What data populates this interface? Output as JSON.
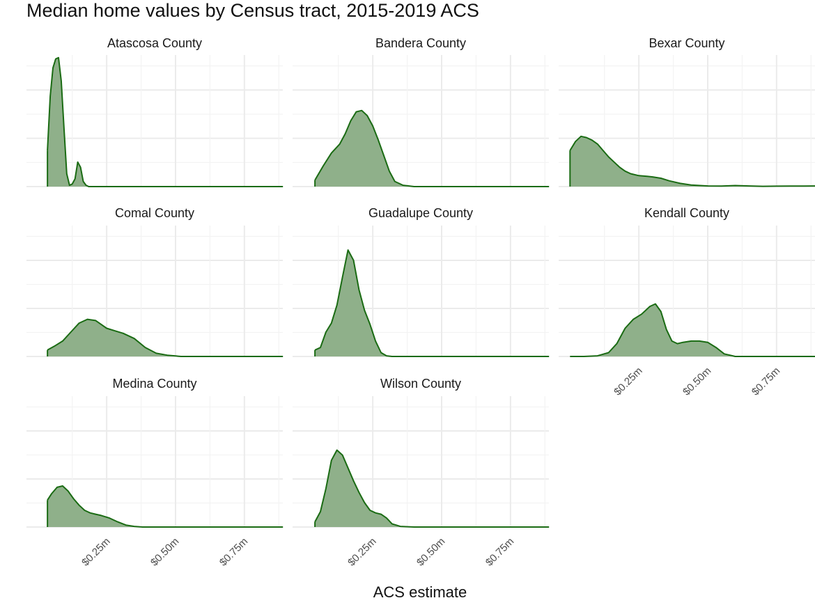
{
  "chart_data": {
    "type": "area",
    "title": "Median home values by Census tract, 2015-2019 ACS",
    "xlabel": "ACS estimate",
    "ylabel": "",
    "xlim": [
      0,
      0.9
    ],
    "x_ticks": [
      0.25,
      0.5,
      0.75
    ],
    "x_tick_labels": [
      "$0.25m",
      "$0.50m",
      "$0.75m"
    ],
    "grid": true,
    "colors": {
      "fill": "#8fb08a",
      "line": "#1a6b13",
      "grid": "#ebebeb"
    },
    "facets": [
      {
        "name": "Atascosa County",
        "x": [
          0.035,
          0.045,
          0.055,
          0.065,
          0.075,
          0.085,
          0.095,
          0.105,
          0.115,
          0.125,
          0.135,
          0.145,
          0.155,
          0.165,
          0.175,
          0.185,
          0.2,
          0.25,
          0.4,
          0.6,
          0.89
        ],
        "y": [
          0.28,
          0.7,
          0.92,
          0.99,
          1.0,
          0.82,
          0.45,
          0.1,
          0.01,
          0.02,
          0.06,
          0.19,
          0.15,
          0.04,
          0.01,
          0.0,
          0.0,
          0.0,
          0.0,
          0.0,
          0.0
        ]
      },
      {
        "name": "Bandera County",
        "x": [
          0.04,
          0.07,
          0.1,
          0.13,
          0.15,
          0.17,
          0.19,
          0.21,
          0.23,
          0.25,
          0.27,
          0.29,
          0.31,
          0.33,
          0.36,
          0.4,
          0.5,
          0.7,
          0.89
        ],
        "y": [
          0.05,
          0.16,
          0.26,
          0.33,
          0.41,
          0.51,
          0.58,
          0.59,
          0.55,
          0.47,
          0.36,
          0.24,
          0.12,
          0.04,
          0.01,
          0.0,
          0.0,
          0.0,
          0.0
        ]
      },
      {
        "name": "Bexar County",
        "x": [
          0.0,
          0.02,
          0.04,
          0.06,
          0.08,
          0.1,
          0.12,
          0.14,
          0.16,
          0.18,
          0.2,
          0.22,
          0.25,
          0.28,
          0.3,
          0.33,
          0.36,
          0.4,
          0.44,
          0.5,
          0.55,
          0.6,
          0.65,
          0.7,
          0.75,
          0.8,
          0.85,
          0.89
        ],
        "y": [
          0.28,
          0.35,
          0.39,
          0.38,
          0.36,
          0.33,
          0.28,
          0.23,
          0.19,
          0.15,
          0.12,
          0.1,
          0.085,
          0.08,
          0.075,
          0.065,
          0.045,
          0.025,
          0.012,
          0.005,
          0.004,
          0.008,
          0.005,
          0.002,
          0.003,
          0.004,
          0.004,
          0.005
        ]
      },
      {
        "name": "Comal County",
        "x": [
          0.035,
          0.06,
          0.09,
          0.12,
          0.15,
          0.18,
          0.21,
          0.23,
          0.25,
          0.28,
          0.31,
          0.35,
          0.39,
          0.43,
          0.47,
          0.52,
          0.6,
          0.75,
          0.89
        ],
        "y": [
          0.05,
          0.08,
          0.12,
          0.19,
          0.26,
          0.29,
          0.28,
          0.25,
          0.22,
          0.2,
          0.18,
          0.14,
          0.07,
          0.025,
          0.01,
          0.0,
          0.0,
          0.0,
          0.0
        ]
      },
      {
        "name": "Guadalupe County",
        "x": [
          0.04,
          0.06,
          0.08,
          0.1,
          0.12,
          0.14,
          0.16,
          0.18,
          0.2,
          0.22,
          0.24,
          0.26,
          0.28,
          0.3,
          0.32,
          0.35,
          0.4,
          0.5,
          0.7,
          0.89
        ],
        "y": [
          0.05,
          0.07,
          0.19,
          0.26,
          0.4,
          0.62,
          0.83,
          0.75,
          0.52,
          0.36,
          0.25,
          0.12,
          0.03,
          0.005,
          0.0,
          0.0,
          0.0,
          0.0,
          0.0,
          0.0
        ]
      },
      {
        "name": "Kendall County",
        "x": [
          0.0,
          0.05,
          0.1,
          0.14,
          0.17,
          0.2,
          0.23,
          0.26,
          0.29,
          0.31,
          0.33,
          0.35,
          0.37,
          0.39,
          0.41,
          0.44,
          0.47,
          0.5,
          0.53,
          0.56,
          0.6,
          0.7,
          0.89
        ],
        "y": [
          0.0,
          0.0,
          0.005,
          0.03,
          0.1,
          0.22,
          0.29,
          0.33,
          0.39,
          0.41,
          0.35,
          0.21,
          0.12,
          0.1,
          0.11,
          0.12,
          0.12,
          0.11,
          0.07,
          0.02,
          0.0,
          0.0,
          0.0
        ]
      },
      {
        "name": "Medina County",
        "x": [
          0.035,
          0.05,
          0.07,
          0.09,
          0.11,
          0.13,
          0.15,
          0.17,
          0.19,
          0.21,
          0.23,
          0.26,
          0.29,
          0.32,
          0.35,
          0.38,
          0.42,
          0.5,
          0.7,
          0.89
        ],
        "y": [
          0.21,
          0.26,
          0.31,
          0.32,
          0.28,
          0.22,
          0.17,
          0.13,
          0.11,
          0.1,
          0.09,
          0.07,
          0.04,
          0.015,
          0.005,
          0.0,
          0.0,
          0.0,
          0.0,
          0.0
        ]
      },
      {
        "name": "Wilson County",
        "x": [
          0.04,
          0.06,
          0.08,
          0.1,
          0.12,
          0.14,
          0.16,
          0.18,
          0.2,
          0.22,
          0.24,
          0.26,
          0.28,
          0.3,
          0.32,
          0.35,
          0.4,
          0.5,
          0.7,
          0.89
        ],
        "y": [
          0.04,
          0.12,
          0.3,
          0.52,
          0.6,
          0.56,
          0.46,
          0.36,
          0.27,
          0.19,
          0.13,
          0.11,
          0.1,
          0.07,
          0.025,
          0.005,
          0.0,
          0.0,
          0.0,
          0.0
        ]
      }
    ]
  }
}
